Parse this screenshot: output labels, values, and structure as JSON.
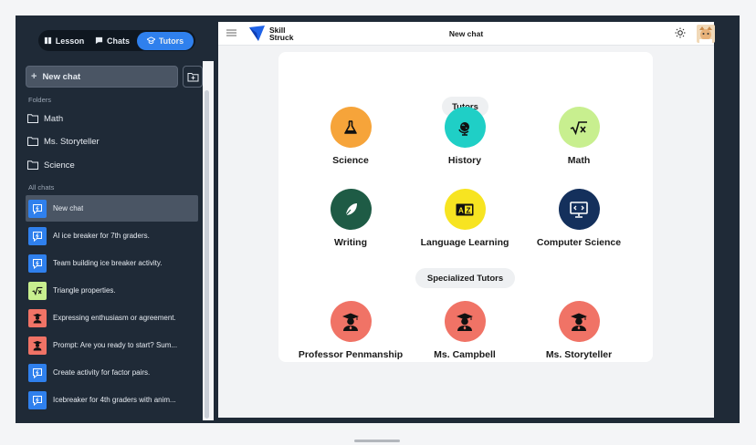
{
  "sidebar": {
    "tabs": [
      {
        "label": "Lesson",
        "icon": "book-icon",
        "active": false
      },
      {
        "label": "Chats",
        "icon": "chat-bubble-icon",
        "active": false
      },
      {
        "label": "Tutors",
        "icon": "graduation-icon",
        "active": true
      }
    ],
    "new_chat_label": "New chat",
    "folders_heading": "Folders",
    "folders": [
      {
        "label": "Math"
      },
      {
        "label": "Ms. Storyteller"
      },
      {
        "label": "Science"
      }
    ],
    "all_chats_heading": "All chats",
    "chats": [
      {
        "label": "New chat",
        "icon": "ai-chat-icon",
        "color": "#2f80ed",
        "active": true
      },
      {
        "label": "AI ice breaker for 7th graders.",
        "icon": "ai-chat-icon",
        "color": "#2f80ed"
      },
      {
        "label": "Team building ice breaker activity.",
        "icon": "ai-chat-icon",
        "color": "#2f80ed"
      },
      {
        "label": "Triangle properties.",
        "icon": "square-root-icon",
        "color": "#c8ef8f"
      },
      {
        "label": "Expressing enthusiasm or agreement.",
        "icon": "graduate-icon",
        "color": "#f07366"
      },
      {
        "label": "Prompt: Are you ready to start? Sum...",
        "icon": "graduate-icon",
        "color": "#f07366"
      },
      {
        "label": "Create activity for factor pairs.",
        "icon": "ai-chat-icon",
        "color": "#2f80ed"
      },
      {
        "label": "Icebreaker for 4th graders with anim...",
        "icon": "ai-chat-icon",
        "color": "#2f80ed"
      }
    ]
  },
  "topbar": {
    "logo_line1": "Skill",
    "logo_line2": "Struck",
    "title": "New chat"
  },
  "tutors_heading": "Tutors",
  "tutors": [
    {
      "label": "Science",
      "icon": "flask-icon",
      "color": "#f6a43a"
    },
    {
      "label": "History",
      "icon": "globe-icon",
      "color": "#1fcfc6"
    },
    {
      "label": "Math",
      "icon": "square-root-icon",
      "color": "#c8ef8f"
    },
    {
      "label": "Writing",
      "icon": "quill-icon",
      "color": "#1e5b45"
    },
    {
      "label": "Language Learning",
      "icon": "language-icon",
      "color": "#f7e421"
    },
    {
      "label": "Computer Science",
      "icon": "code-monitor-icon",
      "color": "#14305c"
    }
  ],
  "specialized_heading": "Specialized Tutors",
  "specialized": [
    {
      "label": "Professor Penmanship",
      "icon": "graduate-icon",
      "color": "#f07366"
    },
    {
      "label": "Ms. Campbell",
      "icon": "graduate-icon",
      "color": "#f07366"
    },
    {
      "label": "Ms. Storyteller",
      "icon": "graduate-icon",
      "color": "#f07366"
    }
  ],
  "colors": {
    "accent": "#2f80ed",
    "sidebar_bg": "#1f2a37"
  }
}
